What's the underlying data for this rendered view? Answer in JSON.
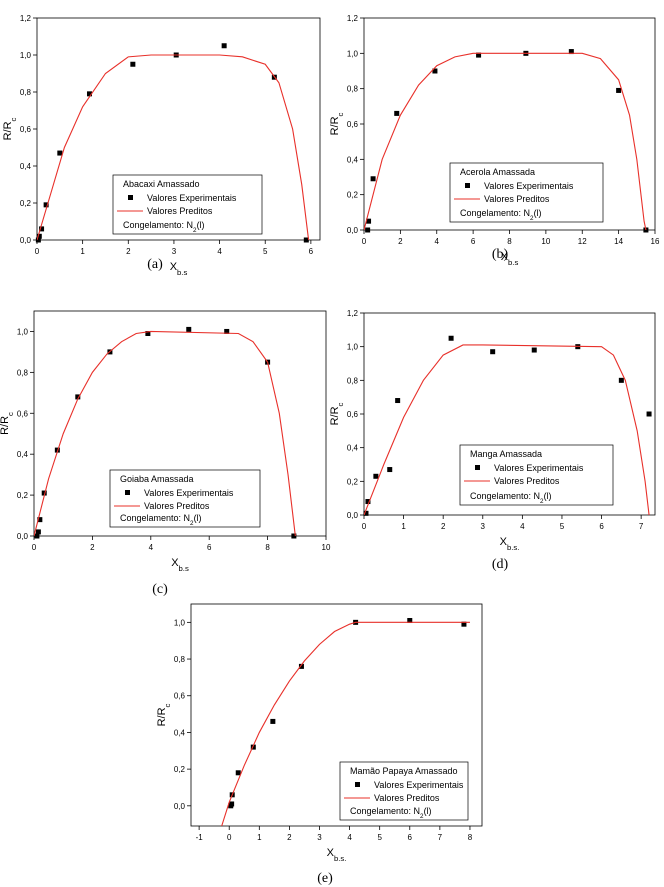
{
  "chart_data": [
    {
      "type": "scatter",
      "panel": "(a)",
      "xlabel": "X",
      "xlabel_sub": "b.s",
      "ylabel": "R/R",
      "ylabel_sub": "c",
      "legend_title": "Abacaxi Amassado",
      "note": "Congelamento: N",
      "note_sub": "2",
      "note_end": "(l)",
      "xlim": [
        0,
        6.2
      ],
      "ylim": [
        0,
        1.2
      ],
      "xticks": [
        0,
        1,
        2,
        3,
        4,
        5,
        6
      ],
      "yticks": [
        {
          "value": 0,
          "label": "0,0"
        },
        {
          "value": 0.2,
          "label": "0,2"
        },
        {
          "value": 0.4,
          "label": "0,4"
        },
        {
          "value": 0.6,
          "label": "0,6"
        },
        {
          "value": 0.8,
          "label": "0,8"
        },
        {
          "value": 1.0,
          "label": "1,0"
        },
        {
          "value": 1.2,
          "label": "1,2"
        }
      ],
      "series": [
        {
          "name": "Valores Experimentais",
          "style": "marker",
          "color": "#000000",
          "x": [
            0.03,
            0.05,
            0.1,
            0.2,
            0.5,
            1.15,
            2.1,
            3.05,
            4.1,
            5.2,
            5.9
          ],
          "values": [
            0.0,
            0.02,
            0.06,
            0.19,
            0.47,
            0.79,
            0.95,
            1.0,
            1.05,
            0.88,
            0.0
          ]
        },
        {
          "name": "Valores Preditos",
          "style": "line",
          "color": "#e8302a",
          "x": [
            0,
            0.3,
            0.6,
            1,
            1.5,
            2,
            2.5,
            3,
            4,
            4.5,
            5,
            5.3,
            5.6,
            5.8,
            5.95
          ],
          "values": [
            0,
            0.25,
            0.5,
            0.72,
            0.9,
            0.99,
            1.0,
            1.0,
            1.0,
            0.99,
            0.95,
            0.85,
            0.6,
            0.3,
            0.0
          ]
        }
      ]
    },
    {
      "type": "scatter",
      "panel": "(b)",
      "xlabel": "X",
      "xlabel_sub": "b.s",
      "ylabel": "R/R",
      "ylabel_sub": "c",
      "legend_title": "Acerola Amassada",
      "note": "Congelamento: N",
      "note_sub": "2",
      "note_end": "(l)",
      "xlim": [
        0,
        16
      ],
      "ylim": [
        0,
        1.2
      ],
      "xticks": [
        0,
        2,
        4,
        6,
        8,
        10,
        12,
        14,
        16
      ],
      "yticks": [
        {
          "value": 0,
          "label": "0,0"
        },
        {
          "value": 0.2,
          "label": "0,2"
        },
        {
          "value": 0.4,
          "label": "0,4"
        },
        {
          "value": 0.6,
          "label": "0,6"
        },
        {
          "value": 0.8,
          "label": "0,8"
        },
        {
          "value": 1.0,
          "label": "1,0"
        },
        {
          "value": 1.2,
          "label": "1,2"
        }
      ],
      "series": [
        {
          "name": "Valores Experimentais",
          "style": "marker",
          "color": "#000000",
          "x": [
            0.2,
            0.25,
            0.5,
            1.8,
            3.9,
            6.3,
            8.9,
            11.4,
            14,
            15.5
          ],
          "values": [
            0.0,
            0.05,
            0.29,
            0.66,
            0.9,
            0.99,
            1.0,
            1.01,
            0.79,
            0.0
          ]
        },
        {
          "name": "Valores Preditos",
          "style": "line",
          "color": "#e8302a",
          "x": [
            0,
            1,
            2,
            3,
            4,
            5,
            6,
            12,
            13,
            14,
            14.6,
            15,
            15.4,
            15.5
          ],
          "values": [
            0,
            0.4,
            0.65,
            0.82,
            0.93,
            0.98,
            1.0,
            1.0,
            0.97,
            0.85,
            0.65,
            0.4,
            0.05,
            0
          ]
        }
      ]
    },
    {
      "type": "scatter",
      "panel": "(c)",
      "xlabel": "X",
      "xlabel_sub": "b.s",
      "ylabel": "R/R",
      "ylabel_sub": "c",
      "legend_title": "Goiaba Amassada",
      "note": "Congelamento: N",
      "note_sub": "2",
      "note_end": "(l)",
      "xlim": [
        0,
        10
      ],
      "ylim": [
        0,
        1.1
      ],
      "xticks": [
        0,
        2,
        4,
        6,
        8,
        10
      ],
      "yticks": [
        {
          "value": 0,
          "label": "0,0"
        },
        {
          "value": 0.2,
          "label": "0,2"
        },
        {
          "value": 0.4,
          "label": "0,4"
        },
        {
          "value": 0.6,
          "label": "0,6"
        },
        {
          "value": 0.8,
          "label": "0,8"
        },
        {
          "value": 1.0,
          "label": "1,0"
        }
      ],
      "series": [
        {
          "name": "Valores Experimentais",
          "style": "marker",
          "color": "#000000",
          "x": [
            0.1,
            0.15,
            0.2,
            0.35,
            0.8,
            1.5,
            2.6,
            3.9,
            5.3,
            6.6,
            8,
            8.9
          ],
          "values": [
            0.0,
            0.02,
            0.08,
            0.21,
            0.42,
            0.68,
            0.9,
            0.99,
            1.01,
            1.0,
            0.85,
            0.0
          ]
        },
        {
          "name": "Valores Preditos",
          "style": "line",
          "color": "#e8302a",
          "x": [
            0,
            0.5,
            1,
            1.5,
            2,
            2.5,
            3,
            3.5,
            4,
            7,
            7.5,
            8,
            8.4,
            8.7,
            8.95
          ],
          "values": [
            0,
            0.28,
            0.5,
            0.67,
            0.8,
            0.89,
            0.95,
            0.99,
            1.0,
            0.99,
            0.95,
            0.85,
            0.6,
            0.3,
            0.0
          ]
        }
      ]
    },
    {
      "type": "scatter",
      "panel": "(d)",
      "xlabel": "X",
      "xlabel_sub": "b.s.",
      "ylabel": "R/R",
      "ylabel_sub": "c",
      "legend_title": "Manga Amassada",
      "note": "Congelamento: N",
      "note_sub": "2",
      "note_end": "(l)",
      "xlim": [
        0,
        7.35
      ],
      "ylim": [
        0,
        1.2
      ],
      "xticks": [
        0,
        1,
        2,
        3,
        4,
        5,
        6,
        7
      ],
      "yticks": [
        {
          "value": 0,
          "label": "0,0"
        },
        {
          "value": 0.2,
          "label": "0,2"
        },
        {
          "value": 0.4,
          "label": "0,4"
        },
        {
          "value": 0.6,
          "label": "0,6"
        },
        {
          "value": 0.8,
          "label": "0,8"
        },
        {
          "value": 1.0,
          "label": "1,0"
        },
        {
          "value": 1.2,
          "label": "1,2"
        }
      ],
      "series": [
        {
          "name": "Valores Experimentais",
          "style": "marker",
          "color": "#000000",
          "x": [
            0.05,
            0.1,
            0.3,
            0.65,
            0.85,
            2.2,
            3.25,
            4.3,
            5.4,
            6.5,
            7.2
          ],
          "values": [
            0.01,
            0.08,
            0.23,
            0.27,
            0.68,
            1.05,
            0.97,
            0.98,
            1.0,
            0.8,
            0.6
          ]
        },
        {
          "name": "Valores Preditos",
          "style": "line",
          "color": "#e8302a",
          "x": [
            0,
            0.5,
            1,
            1.5,
            2,
            2.5,
            3,
            6,
            6.3,
            6.6,
            6.9,
            7.1,
            7.2
          ],
          "values": [
            0,
            0.3,
            0.58,
            0.8,
            0.95,
            1.01,
            1.01,
            1.0,
            0.95,
            0.8,
            0.5,
            0.2,
            0.0
          ]
        }
      ]
    },
    {
      "type": "scatter",
      "panel": "(e)",
      "xlabel": "X",
      "xlabel_sub": "b.s.",
      "ylabel": "R/R",
      "ylabel_sub": "c",
      "legend_title": "Mamão Papaya Amassado",
      "note": "Congelamento: N",
      "note_sub": "2",
      "note_end": "(l)",
      "xlim": [
        -1.27,
        8.4
      ],
      "ylim": [
        -0.11,
        1.1
      ],
      "xticks": [
        -1,
        0,
        1,
        2,
        3,
        4,
        5,
        6,
        7,
        8
      ],
      "yticks": [
        {
          "value": 0,
          "label": "0,0"
        },
        {
          "value": 0.2,
          "label": "0,2"
        },
        {
          "value": 0.4,
          "label": "0,4"
        },
        {
          "value": 0.6,
          "label": "0,6"
        },
        {
          "value": 0.8,
          "label": "0,8"
        },
        {
          "value": 1.0,
          "label": "1,0"
        }
      ],
      "series": [
        {
          "name": "Valores Experimentais",
          "style": "marker",
          "color": "#000000",
          "x": [
            0.05,
            0.08,
            0.1,
            0.3,
            0.8,
            1.45,
            2.4,
            4.2,
            6,
            7.8
          ],
          "values": [
            0.0,
            0.01,
            0.06,
            0.18,
            0.32,
            0.46,
            0.76,
            1.0,
            1.01,
            0.99
          ]
        },
        {
          "name": "Valores Preditos",
          "style": "line",
          "color": "#e8302a",
          "x": [
            -0.25,
            0,
            0.5,
            1,
            1.5,
            2,
            2.5,
            3,
            3.5,
            4,
            4.2,
            8
          ],
          "values": [
            -0.11,
            0.02,
            0.22,
            0.4,
            0.55,
            0.68,
            0.79,
            0.88,
            0.95,
            0.99,
            1.0,
            1.0
          ]
        }
      ]
    }
  ]
}
